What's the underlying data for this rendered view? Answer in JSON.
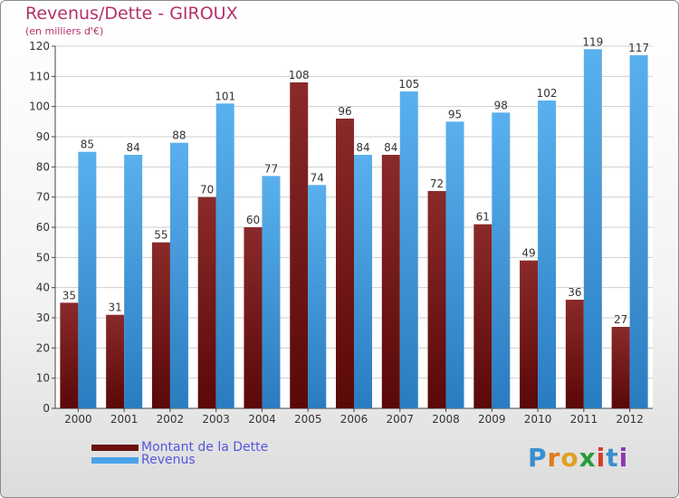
{
  "chart_data": {
    "type": "bar",
    "title": "Revenus/Dette - GIROUX",
    "subtitle": "(en milliers d'€)",
    "categories": [
      "2000",
      "2001",
      "2002",
      "2003",
      "2004",
      "2005",
      "2006",
      "2007",
      "2008",
      "2009",
      "2010",
      "2011",
      "2012"
    ],
    "series": [
      {
        "name": "Montant de la Dette",
        "color": "#7a1a1a",
        "values": [
          35,
          31,
          55,
          70,
          60,
          108,
          96,
          84,
          72,
          61,
          49,
          36,
          27
        ]
      },
      {
        "name": "Revenus",
        "color": "#4aa3e8",
        "values": [
          85,
          84,
          88,
          101,
          77,
          74,
          84,
          105,
          95,
          98,
          102,
          119,
          117
        ]
      }
    ],
    "ylim": [
      0,
      120
    ],
    "yticks": [
      0,
      10,
      20,
      30,
      40,
      50,
      60,
      70,
      80,
      90,
      100,
      110,
      120
    ],
    "grid": true,
    "legend": "bottom-left"
  },
  "logo": {
    "text": "Proxiti",
    "letters": [
      "P",
      "r",
      "o",
      "x",
      "i",
      "t",
      "i"
    ]
  }
}
